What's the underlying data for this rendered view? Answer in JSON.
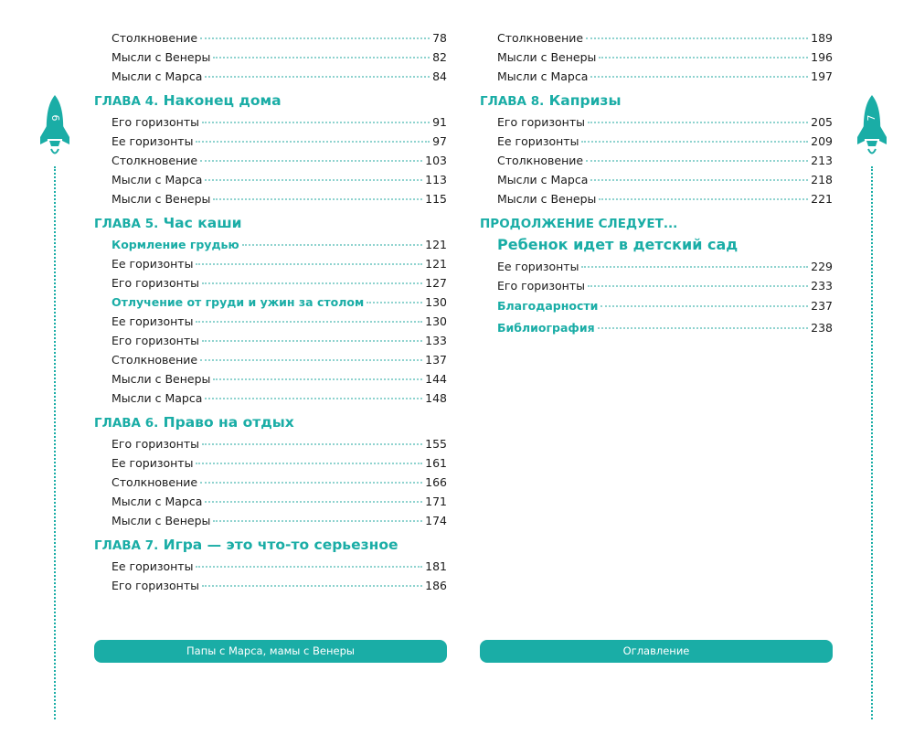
{
  "colors": {
    "accent": "#1aada6",
    "text": "#1a1a1a"
  },
  "left_page": {
    "page_number": "6",
    "footer": "Папы с Марса, мамы с Венеры",
    "items": [
      {
        "kind": "entry",
        "title": "Столкновение",
        "page": "78"
      },
      {
        "kind": "entry",
        "title": "Мысли с Венеры",
        "page": "82"
      },
      {
        "kind": "entry",
        "title": "Мысли с Марса",
        "page": "84"
      },
      {
        "kind": "chapter",
        "label": "ГЛАВА 4.",
        "title": "Наконец дома"
      },
      {
        "kind": "entry",
        "title": "Его горизонты",
        "page": "91"
      },
      {
        "kind": "entry",
        "title": "Ее горизонты",
        "page": "97"
      },
      {
        "kind": "entry",
        "title": "Столкновение",
        "page": "103"
      },
      {
        "kind": "entry",
        "title": "Мысли с Марса",
        "page": "113"
      },
      {
        "kind": "entry",
        "title": "Мысли с Венеры",
        "page": "115"
      },
      {
        "kind": "chapter",
        "label": "ГЛАВА 5.",
        "title": "Час каши"
      },
      {
        "kind": "sub",
        "title": "Кормление грудью",
        "page": "121"
      },
      {
        "kind": "entry",
        "title": "Ее горизонты",
        "page": "121"
      },
      {
        "kind": "entry",
        "title": "Его горизонты",
        "page": "127"
      },
      {
        "kind": "sub",
        "title": "Отлучение от груди и ужин за столом",
        "page": "130"
      },
      {
        "kind": "entry",
        "title": "Ее горизонты",
        "page": "130"
      },
      {
        "kind": "entry",
        "title": "Его горизонты",
        "page": "133"
      },
      {
        "kind": "entry",
        "title": "Столкновение",
        "page": "137"
      },
      {
        "kind": "entry",
        "title": "Мысли с Венеры",
        "page": "144"
      },
      {
        "kind": "entry",
        "title": "Мысли с Марса",
        "page": "148"
      },
      {
        "kind": "chapter",
        "label": "ГЛАВА 6.",
        "title": "Право на отдых"
      },
      {
        "kind": "entry",
        "title": "Его горизонты",
        "page": "155"
      },
      {
        "kind": "entry",
        "title": "Ее горизонты",
        "page": "161"
      },
      {
        "kind": "entry",
        "title": "Столкновение",
        "page": "166"
      },
      {
        "kind": "entry",
        "title": "Мысли с Марса",
        "page": "171"
      },
      {
        "kind": "entry",
        "title": "Мысли с Венеры",
        "page": "174"
      },
      {
        "kind": "chapter",
        "label": "ГЛАВА 7.",
        "title": "Игра — это что-то серьезное"
      },
      {
        "kind": "entry",
        "title": "Ее горизонты",
        "page": "181"
      },
      {
        "kind": "entry",
        "title": "Его горизонты",
        "page": "186"
      }
    ]
  },
  "right_page": {
    "page_number": "7",
    "footer": "Оглавление",
    "items": [
      {
        "kind": "entry",
        "title": "Столкновение",
        "page": "189"
      },
      {
        "kind": "entry",
        "title": "Мысли с Венеры",
        "page": "196"
      },
      {
        "kind": "entry",
        "title": "Мысли с Марса",
        "page": "197"
      },
      {
        "kind": "chapter",
        "label": "ГЛАВА 8.",
        "title": "Капризы"
      },
      {
        "kind": "entry",
        "title": "Его горизонты",
        "page": "205"
      },
      {
        "kind": "entry",
        "title": "Ее горизонты",
        "page": "209"
      },
      {
        "kind": "entry",
        "title": "Столкновение",
        "page": "213"
      },
      {
        "kind": "entry",
        "title": "Мысли с Марса",
        "page": "218"
      },
      {
        "kind": "entry",
        "title": "Мысли с Венеры",
        "page": "221"
      },
      {
        "kind": "chapter",
        "label": "ПРОДОЛЖЕНИЕ СЛЕДУЕТ...",
        "title": ""
      },
      {
        "kind": "subhead",
        "title": "Ребенок идет в детский сад"
      },
      {
        "kind": "entry",
        "title": "Ее горизонты",
        "page": "229"
      },
      {
        "kind": "entry",
        "title": "Его горизонты",
        "page": "233"
      },
      {
        "kind": "big",
        "title": "Благодарности",
        "page": "237"
      },
      {
        "kind": "big",
        "title": "Библиография",
        "page": "238"
      }
    ]
  }
}
